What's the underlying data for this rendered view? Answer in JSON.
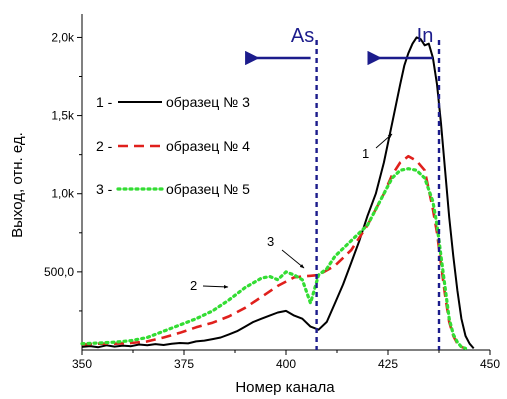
{
  "chart_data": {
    "type": "line",
    "xlabel": "Номер канала",
    "ylabel": "Выход, отн. ед.",
    "xlim": [
      350,
      450
    ],
    "ylim": [
      0,
      2150
    ],
    "x_ticks": [
      350,
      375,
      400,
      425,
      450
    ],
    "x_tick_labels": [
      "350",
      "375",
      "400",
      "425",
      "450"
    ],
    "y_ticks": [
      500,
      1000,
      1500,
      2000
    ],
    "y_tick_labels": [
      "500,0",
      "1,0k",
      "1,5k",
      "2,0k"
    ],
    "grid": false,
    "legend_position": "left-middle",
    "series": [
      {
        "name": "образец № 3",
        "legend_prefix": "1 -",
        "color": "#000000",
        "style": "solid",
        "x": [
          350,
          352,
          354,
          356,
          358,
          360,
          362,
          364,
          366,
          368,
          370,
          372,
          374,
          376,
          378,
          380,
          382,
          384,
          386,
          388,
          390,
          392,
          394,
          396,
          398,
          400,
          402,
          404,
          406,
          408,
          410,
          412,
          414,
          416,
          418,
          420,
          422,
          424,
          426,
          428,
          429,
          430,
          431,
          432,
          433,
          434,
          435,
          436,
          437,
          438,
          439,
          440,
          441,
          442,
          443,
          444,
          445,
          446
        ],
        "values": [
          20,
          25,
          18,
          30,
          22,
          28,
          24,
          35,
          30,
          38,
          32,
          40,
          45,
          42,
          55,
          60,
          70,
          80,
          100,
          120,
          150,
          180,
          200,
          220,
          240,
          250,
          220,
          200,
          150,
          130,
          180,
          300,
          420,
          560,
          700,
          860,
          1000,
          1200,
          1450,
          1700,
          1820,
          1900,
          1960,
          2000,
          1990,
          1950,
          1960,
          1870,
          1700,
          1450,
          1150,
          850,
          600,
          380,
          200,
          90,
          40,
          10
        ]
      },
      {
        "name": "образец № 4",
        "legend_prefix": "2 -",
        "color": "#e0201c",
        "style": "dashed",
        "x": [
          350,
          354,
          358,
          362,
          366,
          370,
          374,
          378,
          382,
          386,
          390,
          394,
          398,
          402,
          404,
          406,
          408,
          412,
          416,
          420,
          424,
          426,
          428,
          430,
          432,
          434,
          436,
          437,
          438,
          439,
          440,
          441,
          442,
          443,
          444
        ],
        "values": [
          35,
          40,
          40,
          45,
          55,
          80,
          110,
          145,
          175,
          215,
          270,
          340,
          410,
          465,
          470,
          475,
          480,
          540,
          640,
          800,
          1000,
          1120,
          1200,
          1240,
          1210,
          1150,
          900,
          750,
          550,
          350,
          180,
          90,
          40,
          20,
          10
        ]
      },
      {
        "name": "образец № 5",
        "legend_prefix": "3 -",
        "color": "#33dd33",
        "style": "dotted",
        "x": [
          350,
          354,
          358,
          362,
          366,
          370,
          374,
          378,
          382,
          386,
          390,
          394,
          396,
          398,
          400,
          402,
          404,
          406,
          408,
          410,
          412,
          416,
          420,
          424,
          426,
          428,
          430,
          432,
          434,
          436,
          437,
          438,
          439,
          440,
          441,
          442,
          443,
          444
        ],
        "values": [
          40,
          45,
          50,
          60,
          80,
          120,
          160,
          200,
          250,
          320,
          400,
          460,
          470,
          450,
          500,
          480,
          450,
          300,
          480,
          520,
          600,
          700,
          800,
          1000,
          1100,
          1150,
          1160,
          1150,
          1100,
          950,
          800,
          600,
          400,
          200,
          100,
          50,
          20,
          10
        ]
      }
    ],
    "annotations": [
      {
        "text": "As",
        "x": 407.5,
        "arrow": "left",
        "vline": true
      },
      {
        "text": "In",
        "x": 437.5,
        "arrow": "left",
        "vline": true
      },
      {
        "text": "1",
        "target_series": 0
      },
      {
        "text": "2",
        "target_series": 1
      },
      {
        "text": "3",
        "target_series": 2
      }
    ]
  }
}
